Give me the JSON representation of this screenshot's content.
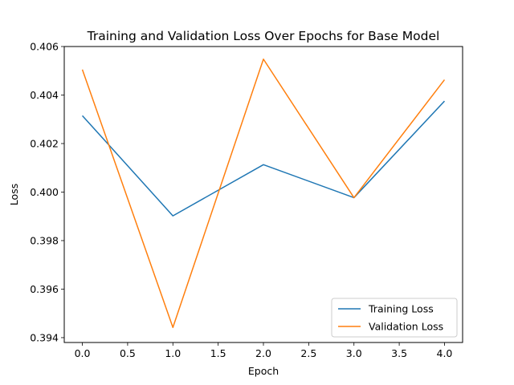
{
  "chart_data": {
    "type": "line",
    "title": "Training and Validation Loss Over Epochs for Base Model",
    "xlabel": "Epoch",
    "ylabel": "Loss",
    "x": [
      0,
      1,
      2,
      3,
      4
    ],
    "xlim": [
      -0.2,
      4.2
    ],
    "ylim": [
      0.3938,
      0.406
    ],
    "xticks": [
      "0.0",
      "0.5",
      "1.0",
      "1.5",
      "2.0",
      "2.5",
      "3.0",
      "3.5",
      "4.0"
    ],
    "yticks": [
      "0.394",
      "0.396",
      "0.398",
      "0.400",
      "0.402",
      "0.404",
      "0.406"
    ],
    "grid": false,
    "legend_position": "lower right",
    "series": [
      {
        "name": "Training Loss",
        "color": "#1f77b4",
        "values": [
          0.40315,
          0.39902,
          0.40113,
          0.39977,
          0.40375
        ]
      },
      {
        "name": "Validation Loss",
        "color": "#ff7f0e",
        "values": [
          0.40505,
          0.39442,
          0.40548,
          0.39977,
          0.40463
        ]
      }
    ]
  }
}
